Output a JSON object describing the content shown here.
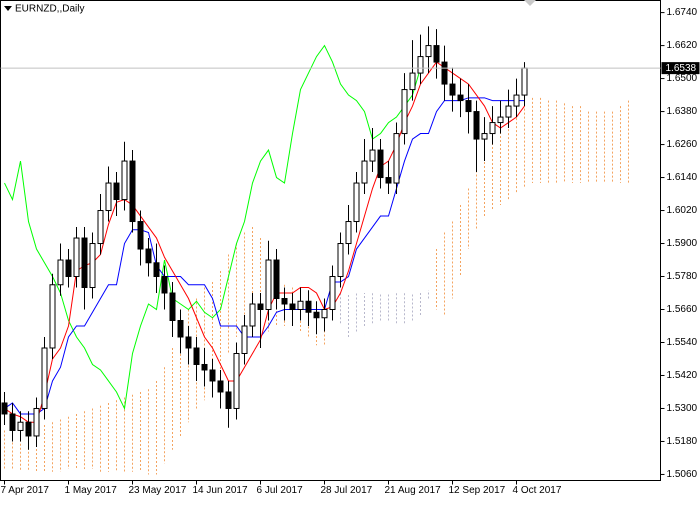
{
  "chart_data": {
    "type": "candlestick",
    "title": "EURNZD,,Daily",
    "xlim": [
      -1,
      164
    ],
    "ylim": [
      1.5038,
      1.6784
    ],
    "xticks": [
      {
        "value": 0,
        "label": "7 Apr 2017"
      },
      {
        "value": 16,
        "label": "1 May 2017"
      },
      {
        "value": 32,
        "label": "23 May 2017"
      },
      {
        "value": 48,
        "label": "14 Jun 2017"
      },
      {
        "value": 64,
        "label": "6 Jul 2017"
      },
      {
        "value": 80,
        "label": "28 Jul 2017"
      },
      {
        "value": 96,
        "label": "21 Aug 2017"
      },
      {
        "value": 112,
        "label": "12 Sep 2017"
      },
      {
        "value": 128,
        "label": "4 Oct 2017"
      }
    ],
    "yticks": [
      {
        "value": 1.674,
        "label": "1.6740"
      },
      {
        "value": 1.662,
        "label": "1.6620"
      },
      {
        "value": 1.65,
        "label": "1.6500"
      },
      {
        "value": 1.638,
        "label": "1.6380"
      },
      {
        "value": 1.626,
        "label": "1.6260"
      },
      {
        "value": 1.614,
        "label": "1.6140"
      },
      {
        "value": 1.602,
        "label": "1.6020"
      },
      {
        "value": 1.59,
        "label": "1.5900"
      },
      {
        "value": 1.578,
        "label": "1.5780"
      },
      {
        "value": 1.566,
        "label": "1.5660"
      },
      {
        "value": 1.554,
        "label": "1.5540"
      },
      {
        "value": 1.542,
        "label": "1.5420"
      },
      {
        "value": 1.53,
        "label": "1.5300"
      },
      {
        "value": 1.518,
        "label": "1.5180"
      },
      {
        "value": 1.506,
        "label": "1.5060"
      }
    ],
    "up_color": "#ffffff",
    "down_color": "#000000",
    "x": [
      0,
      2,
      4,
      6,
      8,
      10,
      12,
      14,
      16,
      18,
      20,
      22,
      24,
      26,
      28,
      30,
      32,
      34,
      36,
      38,
      40,
      42,
      44,
      46,
      48,
      50,
      52,
      54,
      56,
      58,
      60,
      62,
      64,
      66,
      68,
      70,
      72,
      74,
      76,
      78,
      80,
      82,
      84,
      86,
      88,
      90,
      92,
      94,
      96,
      98,
      100,
      102,
      104,
      106,
      108,
      110,
      112,
      114,
      116,
      118,
      120,
      122,
      124,
      126,
      128,
      130
    ],
    "open": [
      1.532,
      1.528,
      1.522,
      1.525,
      1.52,
      1.53,
      1.552,
      1.575,
      1.584,
      1.578,
      1.592,
      1.574,
      1.59,
      1.602,
      1.612,
      1.606,
      1.62,
      1.598,
      1.588,
      1.583,
      1.578,
      1.572,
      1.562,
      1.556,
      1.552,
      1.546,
      1.544,
      1.54,
      1.536,
      1.53,
      1.55,
      1.56,
      1.568,
      1.566,
      1.584,
      1.57,
      1.568,
      1.566,
      1.569,
      1.565,
      1.563,
      1.566,
      1.578,
      1.59,
      1.598,
      1.612,
      1.62,
      1.624,
      1.614,
      1.612,
      1.63,
      1.646,
      1.652,
      1.658,
      1.662,
      1.656,
      1.648,
      1.644,
      1.642,
      1.638,
      1.628,
      1.63,
      1.634,
      1.636,
      1.64,
      1.644
    ],
    "high": [
      1.536,
      1.532,
      1.529,
      1.529,
      1.534,
      1.556,
      1.579,
      1.59,
      1.588,
      1.596,
      1.596,
      1.594,
      1.608,
      1.618,
      1.616,
      1.627,
      1.624,
      1.602,
      1.592,
      1.59,
      1.582,
      1.576,
      1.566,
      1.56,
      1.556,
      1.552,
      1.548,
      1.544,
      1.54,
      1.554,
      1.564,
      1.572,
      1.572,
      1.591,
      1.588,
      1.574,
      1.572,
      1.574,
      1.573,
      1.569,
      1.57,
      1.582,
      1.594,
      1.604,
      1.616,
      1.628,
      1.632,
      1.628,
      1.62,
      1.634,
      1.652,
      1.664,
      1.666,
      1.669,
      1.668,
      1.662,
      1.654,
      1.65,
      1.648,
      1.642,
      1.636,
      1.64,
      1.642,
      1.646,
      1.65,
      1.656
    ],
    "low": [
      1.524,
      1.518,
      1.518,
      1.515,
      1.516,
      1.526,
      1.548,
      1.571,
      1.574,
      1.574,
      1.566,
      1.57,
      1.586,
      1.598,
      1.6,
      1.602,
      1.594,
      1.582,
      1.578,
      1.572,
      1.566,
      1.556,
      1.55,
      1.546,
      1.54,
      1.538,
      1.534,
      1.53,
      1.523,
      1.526,
      1.546,
      1.556,
      1.552,
      1.562,
      1.566,
      1.562,
      1.56,
      1.562,
      1.56,
      1.557,
      1.558,
      1.562,
      1.574,
      1.586,
      1.594,
      1.608,
      1.616,
      1.61,
      1.608,
      1.608,
      1.626,
      1.642,
      1.648,
      1.652,
      1.65,
      1.642,
      1.638,
      1.636,
      1.63,
      1.616,
      1.62,
      1.626,
      1.63,
      1.632,
      1.636,
      1.64
    ],
    "close": [
      1.528,
      1.522,
      1.525,
      1.52,
      1.53,
      1.552,
      1.575,
      1.584,
      1.578,
      1.592,
      1.574,
      1.59,
      1.602,
      1.612,
      1.606,
      1.62,
      1.598,
      1.588,
      1.583,
      1.578,
      1.572,
      1.562,
      1.556,
      1.552,
      1.546,
      1.544,
      1.54,
      1.536,
      1.53,
      1.55,
      1.56,
      1.568,
      1.566,
      1.584,
      1.57,
      1.568,
      1.566,
      1.569,
      1.565,
      1.563,
      1.566,
      1.578,
      1.59,
      1.598,
      1.612,
      1.62,
      1.624,
      1.614,
      1.612,
      1.63,
      1.646,
      1.652,
      1.658,
      1.662,
      1.656,
      1.648,
      1.644,
      1.642,
      1.638,
      1.628,
      1.63,
      1.634,
      1.636,
      1.64,
      1.644,
      1.6538
    ],
    "tenkan": {
      "color": "#ff0000",
      "values": [
        1.53,
        1.528,
        1.527,
        1.525,
        1.525,
        1.535,
        1.548,
        1.552,
        1.56,
        1.58,
        1.582,
        1.583,
        1.586,
        1.597,
        1.605,
        1.606,
        1.604,
        1.6,
        1.596,
        1.592,
        1.585,
        1.58,
        1.575,
        1.57,
        1.563,
        1.556,
        1.552,
        1.546,
        1.54,
        1.54,
        1.545,
        1.55,
        1.555,
        1.566,
        1.572,
        1.572,
        1.572,
        1.574,
        1.574,
        1.572,
        1.566,
        1.567,
        1.572,
        1.58,
        1.59,
        1.6,
        1.61,
        1.618,
        1.62,
        1.626,
        1.634,
        1.64,
        1.648,
        1.652,
        1.656,
        1.654,
        1.652,
        1.65,
        1.648,
        1.644,
        1.64,
        1.634,
        1.632,
        1.634,
        1.636,
        1.64
      ]
    },
    "kijun": {
      "color": "#0000ff",
      "values": [
        1.53,
        1.532,
        1.528,
        1.528,
        1.528,
        1.53,
        1.54,
        1.545,
        1.556,
        1.56,
        1.56,
        1.565,
        1.57,
        1.575,
        1.575,
        1.59,
        1.595,
        1.595,
        1.594,
        1.582,
        1.578,
        1.578,
        1.578,
        1.575,
        1.575,
        1.575,
        1.57,
        1.56,
        1.56,
        1.56,
        1.556,
        1.556,
        1.556,
        1.56,
        1.565,
        1.566,
        1.566,
        1.566,
        1.566,
        1.566,
        1.566,
        1.576,
        1.576,
        1.578,
        1.588,
        1.592,
        1.596,
        1.6,
        1.6,
        1.61,
        1.62,
        1.628,
        1.63,
        1.63,
        1.638,
        1.642,
        1.642,
        1.642,
        1.643,
        1.643,
        1.643,
        1.642,
        1.642,
        1.642,
        1.642,
        1.642
      ]
    },
    "chikou": {
      "color": "#00ff00",
      "x": [
        0,
        2,
        4,
        6,
        8,
        10,
        12,
        14,
        16,
        18,
        20,
        22,
        24,
        26,
        28,
        30,
        32,
        34,
        36,
        38,
        40,
        42,
        44,
        46,
        48,
        50,
        52,
        54,
        56,
        58,
        60,
        62,
        64,
        66,
        68,
        70,
        72,
        74,
        76,
        78,
        80,
        82,
        84,
        86,
        88,
        90,
        92,
        94,
        96,
        98,
        100,
        102,
        104
      ],
      "values": [
        1.612,
        1.606,
        1.62,
        1.598,
        1.588,
        1.583,
        1.578,
        1.572,
        1.562,
        1.556,
        1.552,
        1.546,
        1.544,
        1.54,
        1.536,
        1.53,
        1.55,
        1.56,
        1.568,
        1.566,
        1.584,
        1.57,
        1.568,
        1.566,
        1.569,
        1.565,
        1.563,
        1.566,
        1.578,
        1.59,
        1.598,
        1.612,
        1.62,
        1.624,
        1.614,
        1.612,
        1.63,
        1.646,
        1.652,
        1.658,
        1.662,
        1.656,
        1.648,
        1.644,
        1.642,
        1.638,
        1.628,
        1.63,
        1.634,
        1.636,
        1.64,
        1.644,
        1.6538
      ]
    },
    "cloud": {
      "up_color": "#f4a460",
      "down_color": "#b8b8cc",
      "x": [
        0,
        2,
        4,
        6,
        8,
        10,
        12,
        14,
        16,
        18,
        20,
        22,
        24,
        26,
        28,
        30,
        32,
        34,
        36,
        38,
        40,
        42,
        44,
        46,
        48,
        50,
        52,
        54,
        56,
        58,
        60,
        62,
        64,
        66,
        68,
        70,
        72,
        74,
        76,
        78,
        80,
        82,
        84,
        86,
        88,
        90,
        92,
        94,
        96,
        98,
        100,
        102,
        104,
        106,
        108,
        110,
        112,
        114,
        116,
        118,
        120,
        122,
        124,
        126,
        128,
        130,
        132,
        134,
        136,
        138,
        140,
        142,
        144,
        146,
        148,
        150,
        152,
        154,
        156
      ],
      "span_a": [
        1.522,
        1.522,
        1.523,
        1.523,
        1.524,
        1.524,
        1.525,
        1.526,
        1.527,
        1.528,
        1.529,
        1.53,
        1.531,
        1.532,
        1.533,
        1.534,
        1.535,
        1.536,
        1.537,
        1.54,
        1.545,
        1.552,
        1.56,
        1.566,
        1.57,
        1.574,
        1.576,
        1.58,
        1.586,
        1.59,
        1.594,
        1.596,
        1.592,
        1.586,
        1.58,
        1.575,
        1.574,
        1.572,
        1.57,
        1.568,
        1.57,
        1.566,
        1.561,
        1.556,
        1.558,
        1.56,
        1.561,
        1.562,
        1.562,
        1.561,
        1.561,
        1.562,
        1.564,
        1.57,
        1.588,
        1.594,
        1.598,
        1.604,
        1.61,
        1.618,
        1.624,
        1.628,
        1.632,
        1.636,
        1.64,
        1.642,
        1.643,
        1.643,
        1.642,
        1.642,
        1.641,
        1.64,
        1.64,
        1.638,
        1.638,
        1.638,
        1.638,
        1.64,
        1.642
      ],
      "span_b": [
        1.508,
        1.508,
        1.507,
        1.507,
        1.507,
        1.507,
        1.507,
        1.507,
        1.508,
        1.508,
        1.508,
        1.508,
        1.507,
        1.507,
        1.507,
        1.507,
        1.507,
        1.507,
        1.506,
        1.506,
        1.51,
        1.515,
        1.52,
        1.525,
        1.53,
        1.533,
        1.536,
        1.542,
        1.55,
        1.556,
        1.558,
        1.558,
        1.558,
        1.558,
        1.56,
        1.56,
        1.56,
        1.558,
        1.556,
        1.553,
        1.553,
        1.572,
        1.572,
        1.572,
        1.572,
        1.572,
        1.572,
        1.572,
        1.572,
        1.572,
        1.572,
        1.572,
        1.572,
        1.573,
        1.566,
        1.564,
        1.57,
        1.578,
        1.588,
        1.595,
        1.6,
        1.602,
        1.604,
        1.606,
        1.608,
        1.61,
        1.612,
        1.612,
        1.612,
        1.612,
        1.612,
        1.612,
        1.612,
        1.612,
        1.612,
        1.612,
        1.612,
        1.612,
        1.612
      ]
    }
  }
}
